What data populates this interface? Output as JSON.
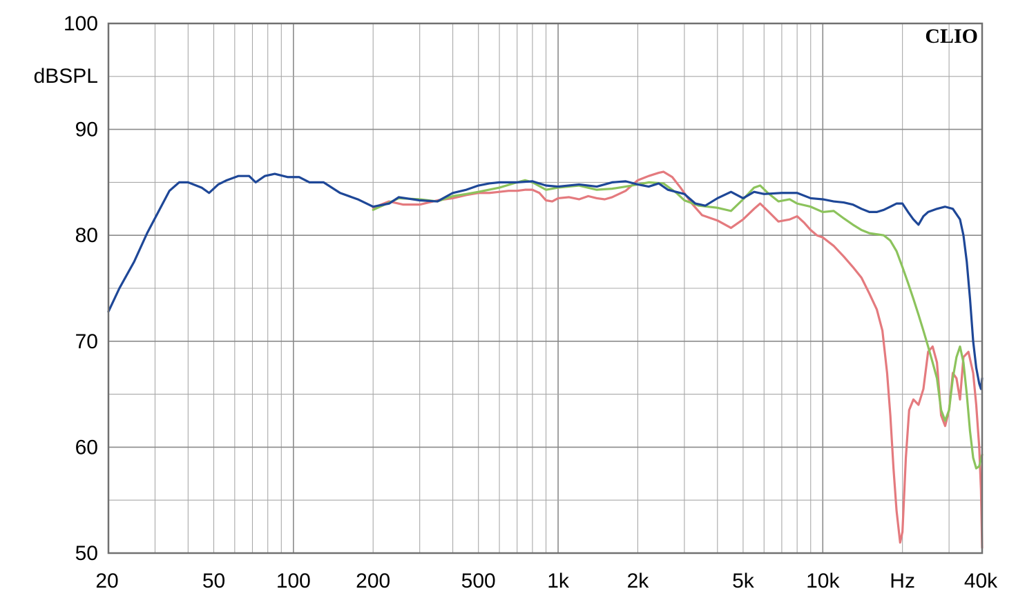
{
  "chart_data": {
    "type": "line",
    "brand": "CLIO",
    "ylabel": "dBSPL",
    "xlabel": "Hz",
    "xscale": "log",
    "xlim": [
      20,
      40000
    ],
    "ylim": [
      50,
      100
    ],
    "grid": true,
    "x_tick_labels": [
      {
        "value": 20,
        "label": "20"
      },
      {
        "value": 50,
        "label": "50"
      },
      {
        "value": 100,
        "label": "100"
      },
      {
        "value": 200,
        "label": "200"
      },
      {
        "value": 500,
        "label": "500"
      },
      {
        "value": 1000,
        "label": "1k"
      },
      {
        "value": 2000,
        "label": "2k"
      },
      {
        "value": 5000,
        "label": "5k"
      },
      {
        "value": 10000,
        "label": "10k"
      },
      {
        "value": 20000,
        "label": "Hz"
      },
      {
        "value": 40000,
        "label": "40k"
      }
    ],
    "y_tick_labels": [
      {
        "value": 100,
        "label": "100"
      },
      {
        "value": 90,
        "label": "90"
      },
      {
        "value": 80,
        "label": "80"
      },
      {
        "value": 70,
        "label": "70"
      },
      {
        "value": 60,
        "label": "60"
      },
      {
        "value": 50,
        "label": "50"
      }
    ],
    "series": [
      {
        "color": "#e47a7e",
        "points": [
          [
            200,
            82.6
          ],
          [
            230,
            83.2
          ],
          [
            260,
            82.9
          ],
          [
            300,
            82.9
          ],
          [
            350,
            83.3
          ],
          [
            400,
            83.5
          ],
          [
            450,
            83.8
          ],
          [
            500,
            84.0
          ],
          [
            550,
            84.0
          ],
          [
            600,
            84.1
          ],
          [
            650,
            84.2
          ],
          [
            700,
            84.2
          ],
          [
            750,
            84.3
          ],
          [
            800,
            84.3
          ],
          [
            850,
            84.0
          ],
          [
            900,
            83.3
          ],
          [
            950,
            83.2
          ],
          [
            1000,
            83.5
          ],
          [
            1100,
            83.6
          ],
          [
            1200,
            83.4
          ],
          [
            1300,
            83.7
          ],
          [
            1400,
            83.5
          ],
          [
            1500,
            83.4
          ],
          [
            1600,
            83.6
          ],
          [
            1800,
            84.2
          ],
          [
            2000,
            85.2
          ],
          [
            2200,
            85.6
          ],
          [
            2400,
            85.9
          ],
          [
            2500,
            86.0
          ],
          [
            2700,
            85.5
          ],
          [
            2900,
            84.5
          ],
          [
            3200,
            83.0
          ],
          [
            3500,
            81.9
          ],
          [
            4000,
            81.4
          ],
          [
            4500,
            80.7
          ],
          [
            5000,
            81.5
          ],
          [
            5500,
            82.5
          ],
          [
            5800,
            83.0
          ],
          [
            6200,
            82.3
          ],
          [
            6800,
            81.3
          ],
          [
            7500,
            81.5
          ],
          [
            8000,
            81.8
          ],
          [
            8500,
            81.2
          ],
          [
            9000,
            80.5
          ],
          [
            9500,
            80.0
          ],
          [
            10000,
            79.8
          ],
          [
            11000,
            79.0
          ],
          [
            12000,
            78.0
          ],
          [
            13000,
            77.0
          ],
          [
            14000,
            76.0
          ],
          [
            15000,
            74.5
          ],
          [
            16000,
            73.0
          ],
          [
            16800,
            71.0
          ],
          [
            17500,
            67.0
          ],
          [
            18000,
            63.0
          ],
          [
            18500,
            58.0
          ],
          [
            19000,
            54.0
          ],
          [
            19600,
            51.0
          ],
          [
            20000,
            52.0
          ],
          [
            20600,
            59.0
          ],
          [
            21200,
            63.5
          ],
          [
            22000,
            64.5
          ],
          [
            23000,
            64.0
          ],
          [
            24000,
            65.5
          ],
          [
            25000,
            69.0
          ],
          [
            26000,
            69.5
          ],
          [
            27000,
            68.0
          ],
          [
            28000,
            63.0
          ],
          [
            29000,
            62.0
          ],
          [
            30000,
            63.5
          ],
          [
            31000,
            67.0
          ],
          [
            32000,
            66.5
          ],
          [
            33000,
            64.5
          ],
          [
            34000,
            68.5
          ],
          [
            35500,
            69.0
          ],
          [
            37000,
            67.0
          ],
          [
            38000,
            64.0
          ],
          [
            39000,
            60.0
          ],
          [
            39600,
            56.0
          ],
          [
            40000,
            50.5
          ]
        ]
      },
      {
        "color": "#8cc35c",
        "points": [
          [
            200,
            82.4
          ],
          [
            250,
            83.5
          ],
          [
            300,
            83.4
          ],
          [
            350,
            83.2
          ],
          [
            400,
            83.7
          ],
          [
            450,
            83.9
          ],
          [
            500,
            84.1
          ],
          [
            600,
            84.5
          ],
          [
            700,
            85.0
          ],
          [
            750,
            85.2
          ],
          [
            800,
            85.0
          ],
          [
            900,
            84.3
          ],
          [
            1000,
            84.5
          ],
          [
            1200,
            84.7
          ],
          [
            1400,
            84.3
          ],
          [
            1600,
            84.4
          ],
          [
            1800,
            84.6
          ],
          [
            2000,
            84.8
          ],
          [
            2200,
            85.0
          ],
          [
            2500,
            84.9
          ],
          [
            2800,
            84.0
          ],
          [
            3000,
            83.3
          ],
          [
            3400,
            82.8
          ],
          [
            4000,
            82.6
          ],
          [
            4500,
            82.3
          ],
          [
            5000,
            83.4
          ],
          [
            5500,
            84.5
          ],
          [
            5800,
            84.7
          ],
          [
            6200,
            84.0
          ],
          [
            6800,
            83.2
          ],
          [
            7500,
            83.4
          ],
          [
            8000,
            83.0
          ],
          [
            9000,
            82.7
          ],
          [
            10000,
            82.2
          ],
          [
            11000,
            82.3
          ],
          [
            12000,
            81.6
          ],
          [
            13000,
            81.0
          ],
          [
            14000,
            80.5
          ],
          [
            15000,
            80.2
          ],
          [
            16000,
            80.1
          ],
          [
            17000,
            80.0
          ],
          [
            18000,
            79.5
          ],
          [
            19000,
            78.5
          ],
          [
            20000,
            77.0
          ],
          [
            21000,
            75.5
          ],
          [
            22000,
            74.0
          ],
          [
            23000,
            72.5
          ],
          [
            24000,
            71.0
          ],
          [
            25000,
            69.5
          ],
          [
            26000,
            68.0
          ],
          [
            27000,
            66.5
          ],
          [
            28000,
            63.5
          ],
          [
            29000,
            62.5
          ],
          [
            30000,
            63.5
          ],
          [
            31000,
            66.5
          ],
          [
            32000,
            68.5
          ],
          [
            33000,
            69.5
          ],
          [
            34000,
            68.0
          ],
          [
            35000,
            65.0
          ],
          [
            36000,
            61.5
          ],
          [
            37000,
            59.0
          ],
          [
            38000,
            58.0
          ],
          [
            39000,
            58.2
          ],
          [
            40000,
            59.3
          ]
        ]
      },
      {
        "color": "#1e4797",
        "points": [
          [
            20,
            72.8
          ],
          [
            22,
            75.0
          ],
          [
            25,
            77.5
          ],
          [
            28,
            80.2
          ],
          [
            31,
            82.3
          ],
          [
            34,
            84.2
          ],
          [
            37,
            85.0
          ],
          [
            40,
            85.0
          ],
          [
            45,
            84.5
          ],
          [
            48,
            84.0
          ],
          [
            52,
            84.8
          ],
          [
            56,
            85.2
          ],
          [
            62,
            85.6
          ],
          [
            68,
            85.6
          ],
          [
            72,
            85.0
          ],
          [
            78,
            85.6
          ],
          [
            85,
            85.8
          ],
          [
            95,
            85.5
          ],
          [
            105,
            85.5
          ],
          [
            115,
            85.0
          ],
          [
            130,
            85.0
          ],
          [
            150,
            84.0
          ],
          [
            175,
            83.4
          ],
          [
            200,
            82.7
          ],
          [
            230,
            83.0
          ],
          [
            250,
            83.6
          ],
          [
            300,
            83.3
          ],
          [
            350,
            83.2
          ],
          [
            400,
            84.0
          ],
          [
            450,
            84.3
          ],
          [
            500,
            84.7
          ],
          [
            550,
            84.9
          ],
          [
            600,
            85.0
          ],
          [
            700,
            85.0
          ],
          [
            800,
            85.1
          ],
          [
            900,
            84.7
          ],
          [
            1000,
            84.6
          ],
          [
            1200,
            84.8
          ],
          [
            1400,
            84.6
          ],
          [
            1600,
            85.0
          ],
          [
            1800,
            85.1
          ],
          [
            2000,
            84.8
          ],
          [
            2200,
            84.6
          ],
          [
            2400,
            84.9
          ],
          [
            2600,
            84.3
          ],
          [
            3000,
            83.9
          ],
          [
            3300,
            83.0
          ],
          [
            3600,
            82.8
          ],
          [
            4000,
            83.5
          ],
          [
            4500,
            84.1
          ],
          [
            5000,
            83.5
          ],
          [
            5500,
            84.1
          ],
          [
            6000,
            83.9
          ],
          [
            7000,
            84.0
          ],
          [
            8000,
            84.0
          ],
          [
            9000,
            83.5
          ],
          [
            10000,
            83.4
          ],
          [
            11000,
            83.2
          ],
          [
            12000,
            83.1
          ],
          [
            13000,
            82.9
          ],
          [
            14000,
            82.5
          ],
          [
            15000,
            82.2
          ],
          [
            16000,
            82.2
          ],
          [
            17000,
            82.4
          ],
          [
            18000,
            82.7
          ],
          [
            19000,
            83.0
          ],
          [
            20000,
            83.0
          ],
          [
            21000,
            82.2
          ],
          [
            22000,
            81.5
          ],
          [
            23000,
            81.0
          ],
          [
            24000,
            81.8
          ],
          [
            25000,
            82.2
          ],
          [
            27000,
            82.5
          ],
          [
            29000,
            82.7
          ],
          [
            31000,
            82.5
          ],
          [
            33000,
            81.5
          ],
          [
            34000,
            80.0
          ],
          [
            35000,
            77.5
          ],
          [
            36000,
            74.0
          ],
          [
            37000,
            70.0
          ],
          [
            38000,
            67.5
          ],
          [
            39000,
            66.0
          ],
          [
            39600,
            65.5
          ],
          [
            40000,
            66.5
          ]
        ]
      }
    ]
  }
}
